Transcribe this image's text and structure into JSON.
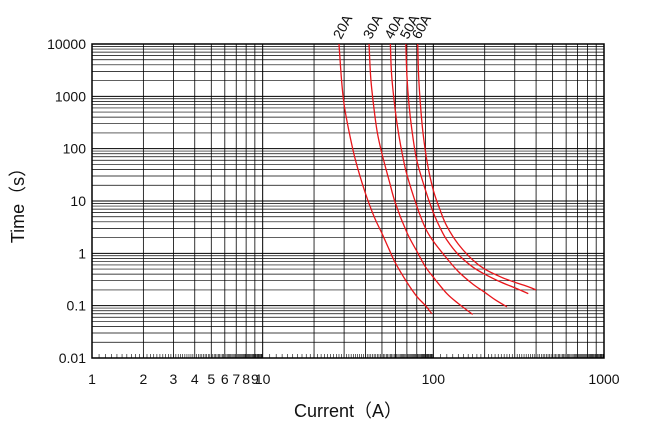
{
  "chart_data": {
    "type": "line",
    "xscale": "log",
    "yscale": "log",
    "xlim": [
      1,
      1000
    ],
    "ylim": [
      0.01,
      10000
    ],
    "xlabel": "Current（A）",
    "ylabel": "Time（s）",
    "x_ticks": [
      1,
      2,
      3,
      4,
      5,
      6,
      7,
      8,
      9,
      10,
      100,
      1000
    ],
    "x_tick_labels": [
      "1",
      "2",
      "3",
      "4",
      "5",
      "6",
      "7",
      "8",
      "9",
      "10",
      "100",
      "1000"
    ],
    "y_ticks": [
      0.01,
      0.1,
      1,
      10,
      100,
      1000,
      10000
    ],
    "y_tick_labels": [
      "0.01",
      "0.1",
      "1",
      "10",
      "100",
      "1000",
      "10000"
    ],
    "grid": true,
    "line_color": "#e8161b",
    "series": [
      {
        "name": "20A",
        "x": [
          28,
          29,
          30,
          32,
          35,
          40,
          45,
          50,
          55,
          60,
          70,
          80,
          90,
          98
        ],
        "y": [
          10000,
          2000,
          700,
          220,
          60,
          14,
          5,
          2.4,
          1.2,
          0.65,
          0.28,
          0.15,
          0.1,
          0.07
        ]
      },
      {
        "name": "30A",
        "x": [
          42,
          43,
          45,
          47,
          50,
          55,
          60,
          70,
          80,
          90,
          100,
          120,
          140,
          170
        ],
        "y": [
          10000,
          2200,
          550,
          200,
          80,
          25,
          9,
          2.5,
          1.1,
          0.55,
          0.35,
          0.17,
          0.11,
          0.068
        ]
      },
      {
        "name": "40A",
        "x": [
          56,
          57,
          60,
          63,
          66,
          70,
          80,
          90,
          100,
          120,
          140,
          170,
          200,
          230,
          270
        ],
        "y": [
          10000,
          2500,
          500,
          170,
          75,
          32,
          8,
          3,
          1.7,
          0.8,
          0.45,
          0.26,
          0.18,
          0.13,
          0.095
        ]
      },
      {
        "name": "50A",
        "x": [
          69,
          70,
          72,
          75,
          80,
          90,
          100,
          110,
          120,
          140,
          170,
          200,
          250,
          300,
          360
        ],
        "y": [
          10000,
          2500,
          700,
          220,
          60,
          16,
          6,
          3,
          1.8,
          0.95,
          0.55,
          0.4,
          0.28,
          0.22,
          0.17
        ]
      },
      {
        "name": "60A",
        "x": [
          81,
          82,
          84,
          87,
          92,
          100,
          110,
          120,
          140,
          170,
          200,
          250,
          300,
          360,
          400
        ],
        "y": [
          10000,
          2500,
          700,
          200,
          55,
          16,
          6.5,
          3.3,
          1.5,
          0.75,
          0.5,
          0.35,
          0.28,
          0.23,
          0.2
        ]
      }
    ]
  }
}
